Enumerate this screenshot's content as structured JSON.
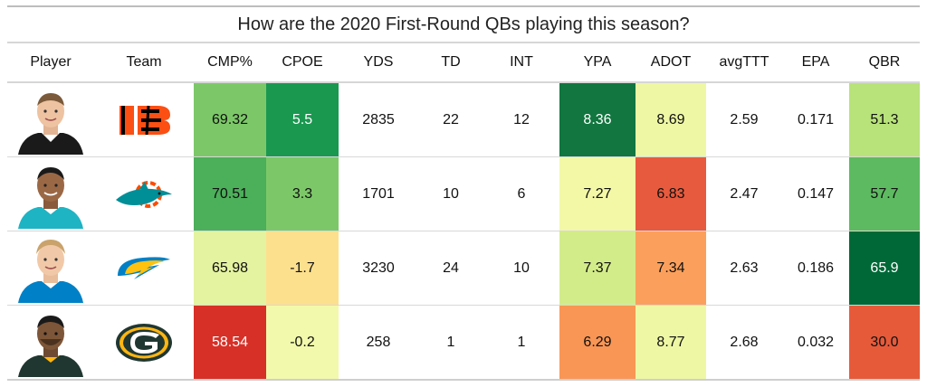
{
  "title": "How are the 2020 First-Round QBs playing this season?",
  "columns": [
    "Player",
    "Team",
    "CMP%",
    "CPOE",
    "YDS",
    "TD",
    "INT",
    "YPA",
    "ADOT",
    "avgTTT",
    "EPA",
    "QBR"
  ],
  "rows": [
    {
      "player_icon": "joe-burrow-headshot",
      "team_icon": "bengals-logo",
      "cmp": "69.32",
      "cpoe": "5.5",
      "yds": "2835",
      "td": "22",
      "int": "12",
      "ypa": "8.36",
      "adot": "8.69",
      "ttt": "2.59",
      "epa": "0.171",
      "qbr": "51.3",
      "colors": {
        "cmp": "#7cc868",
        "cpoe": "#1a9850",
        "ypa": "#11763f",
        "adot": "#eef7a4",
        "qbr": "#b8e27a"
      }
    },
    {
      "player_icon": "tua-tagovailoa-headshot",
      "team_icon": "dolphins-logo",
      "cmp": "70.51",
      "cpoe": "3.3",
      "yds": "1701",
      "td": "10",
      "int": "6",
      "ypa": "7.27",
      "adot": "6.83",
      "ttt": "2.47",
      "epa": "0.147",
      "qbr": "57.7",
      "colors": {
        "cmp": "#4caf5a",
        "cpoe": "#7cc868",
        "ypa": "#f3f8a6",
        "adot": "#e85a3d",
        "qbr": "#5dba60"
      }
    },
    {
      "player_icon": "justin-herbert-headshot",
      "team_icon": "chargers-logo",
      "cmp": "65.98",
      "cpoe": "-1.7",
      "yds": "3230",
      "td": "24",
      "int": "10",
      "ypa": "7.37",
      "adot": "7.34",
      "ttt": "2.63",
      "epa": "0.186",
      "qbr": "65.9",
      "colors": {
        "cmp": "#e4f3a0",
        "cpoe": "#fde08e",
        "ypa": "#d3ec8a",
        "adot": "#fba05c",
        "qbr": "#006837"
      }
    },
    {
      "player_icon": "jordan-love-headshot",
      "team_icon": "packers-logo",
      "cmp": "58.54",
      "cpoe": "-0.2",
      "yds": "258",
      "td": "1",
      "int": "1",
      "ypa": "6.29",
      "adot": "8.77",
      "ttt": "2.68",
      "epa": "0.032",
      "qbr": "30.0",
      "colors": {
        "cmp": "#d73027",
        "cpoe": "#f2f9ac",
        "ypa": "#f99655",
        "adot": "#eef7a4",
        "qbr": "#e65a3a"
      }
    }
  ]
}
